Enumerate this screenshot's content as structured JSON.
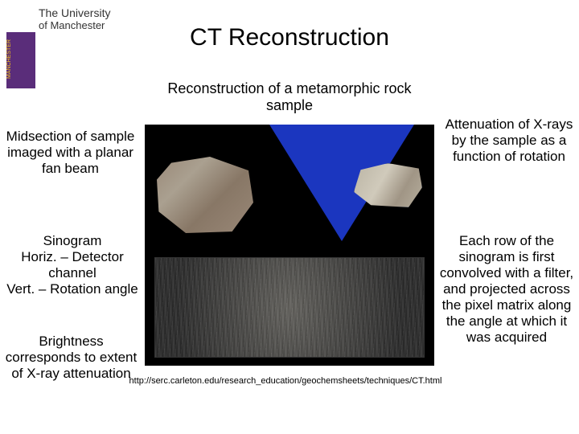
{
  "logo": {
    "line1": "The University",
    "line2": "of Manchester",
    "badge_text": "MANCHESTER",
    "badge_year": "1824",
    "badge_bg": "#5a2d7a",
    "badge_fg": "#f5c518"
  },
  "title": "CT Reconstruction",
  "subtitle": "Reconstruction of a metamorphic rock sample",
  "figure": {
    "background": "#000000",
    "fanbeam_color": "#2040e0",
    "rock_palette": [
      "#998877",
      "#aaa090",
      "#887766"
    ],
    "recon_palette": [
      "#bbb5a5",
      "#d0cabb",
      "#a09585",
      "#b5ad9c"
    ],
    "sinogram_bg": "#1a1a1a"
  },
  "left_labels": {
    "midsection": "Midsection of sample imaged with a planar fan beam",
    "sinogram": "Sinogram\nHoriz. – Detector channel\nVert. – Rotation angle",
    "brightness": "Brightness corresponds to extent of X-ray attenuation"
  },
  "right_labels": {
    "attenuation": "Attenuation of X-rays by the sample as a function of rotation",
    "each_row": "Each row of the sinogram is first convolved with a filter, and projected across the pixel matrix along the angle at which it was acquired"
  },
  "source_url": "http://serc.carleton.edu/research_education/geochemsheets/techniques/CT.html"
}
